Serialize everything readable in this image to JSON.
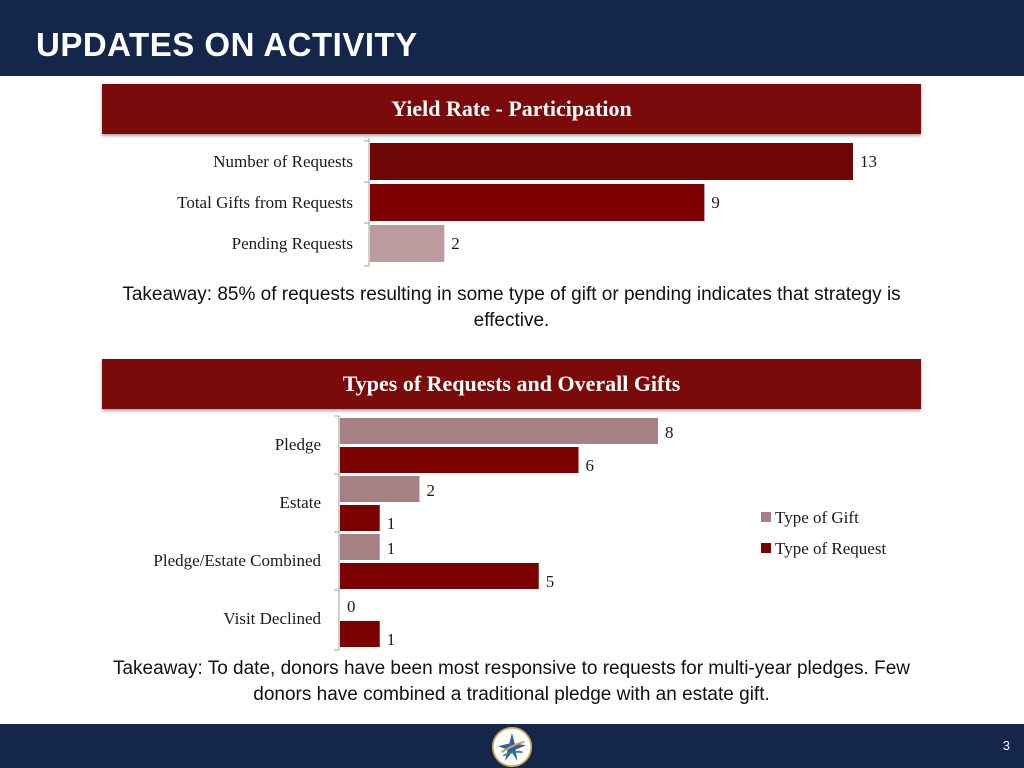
{
  "slide": {
    "title": "UPDATES ON ACTIVITY",
    "page_number": "3"
  },
  "takeaways": {
    "first": "Takeaway: 85% of requests resulting in some type of gift or pending indicates that strategy is effective.",
    "second": "Takeaway: To date, donors have been most responsive to requests for multi-year pledges.  Few donors have combined a traditional pledge with an estate gift."
  },
  "colors": {
    "header": "#14264a",
    "banner": "#7b0a0a",
    "bar_dark": "#6e0606",
    "bar_red": "#7f0000",
    "bar_pink": "#bb9c9e",
    "gift": "#a58183",
    "request": "#7c0202"
  },
  "chart_data": [
    {
      "type": "bar",
      "orientation": "horizontal",
      "title": "Yield Rate - Participation",
      "categories": [
        "Number of Requests",
        "Total Gifts from Requests",
        "Pending Requests"
      ],
      "values": [
        13,
        9,
        2
      ],
      "xlim": [
        0,
        13
      ],
      "grid": false,
      "legend": "none"
    },
    {
      "type": "bar",
      "orientation": "horizontal",
      "title": "Types of Requests and Overall Gifts",
      "categories": [
        "Pledge",
        "Estate",
        "Pledge/Estate Combined",
        "Visit Declined"
      ],
      "series": [
        {
          "name": "Type of Gift",
          "values": [
            8,
            2,
            1,
            0
          ]
        },
        {
          "name": "Type of Request",
          "values": [
            6,
            1,
            5,
            1
          ]
        }
      ],
      "xlim": [
        0,
        8
      ],
      "grid": false,
      "legend": "right"
    }
  ]
}
